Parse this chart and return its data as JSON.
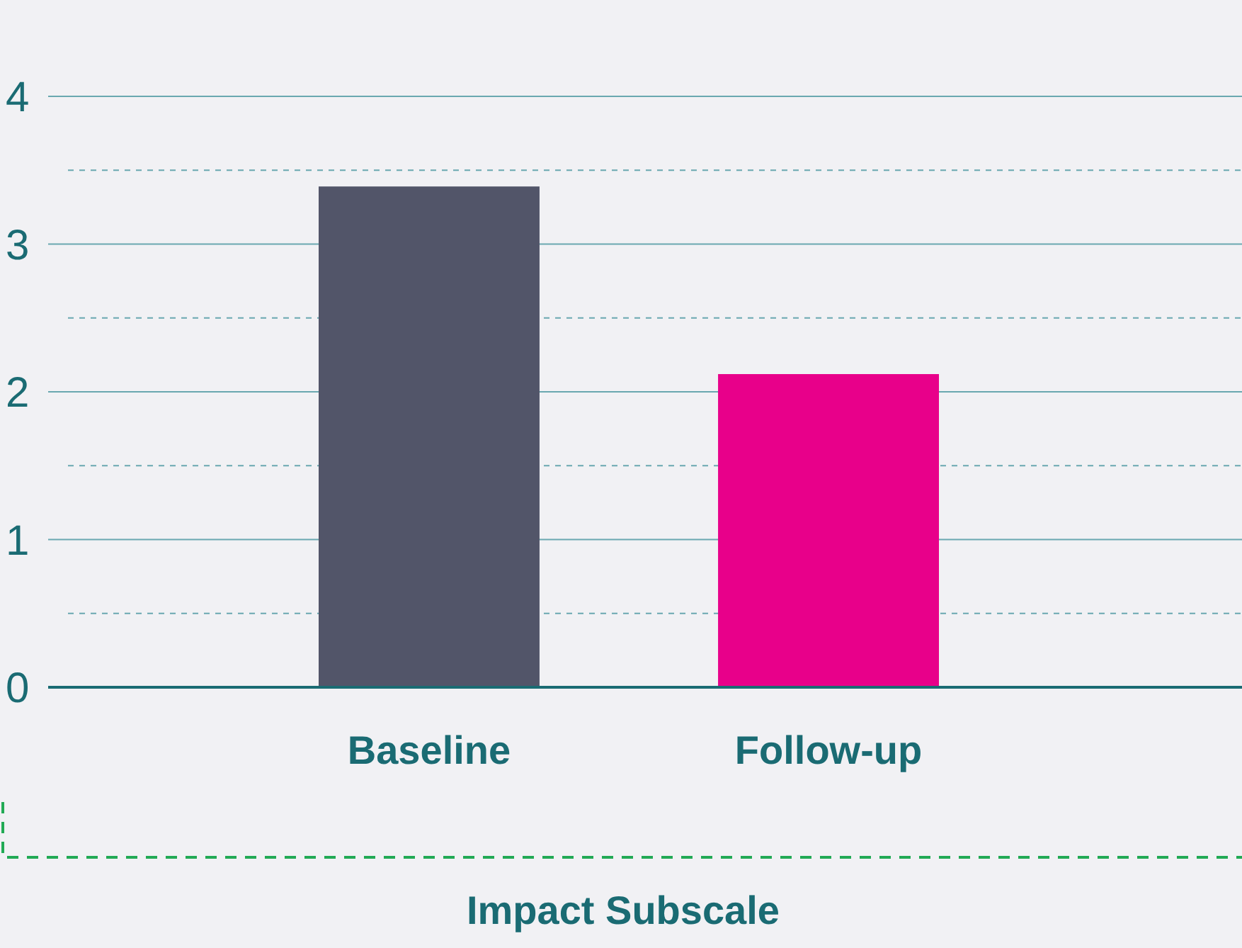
{
  "chart_data": {
    "type": "bar",
    "xlabel": "Impact Subscale",
    "categories": [
      "Baseline",
      "Follow-up"
    ],
    "values": [
      3.39,
      2.12
    ],
    "colors": [
      "#525569",
      "#e8008a"
    ],
    "ylim": [
      0,
      4
    ],
    "yticks": [
      0,
      {
        "value": 0.5,
        "label": null
      },
      1,
      {
        "value": 1.5,
        "label": null
      },
      2,
      {
        "value": 2.5,
        "label": null
      },
      3,
      {
        "value": 3.5,
        "label": null
      },
      4
    ],
    "grid": "y"
  }
}
